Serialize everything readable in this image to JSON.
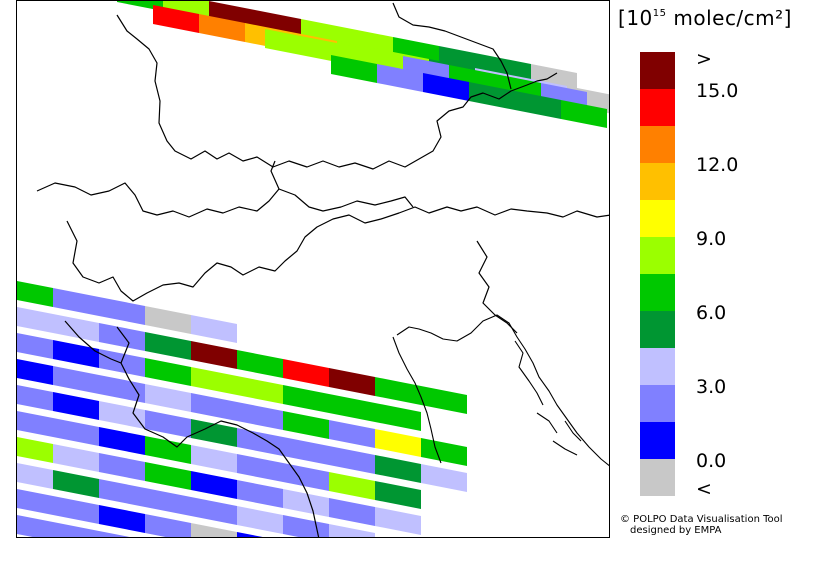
{
  "legend": {
    "title_base": "10",
    "title_exp": "15",
    "title_unit": "molec/cm²",
    "colors": [
      "#800000",
      "#ff0000",
      "#ff8000",
      "#ffc000",
      "#ffff00",
      "#9bff00",
      "#00c800",
      "#009632",
      "#c0c0ff",
      "#8080ff",
      "#0000ff",
      "#c8c8c8"
    ],
    "ticks": [
      ">",
      "15.0",
      "12.0",
      "9.0",
      "6.0",
      "3.0",
      "0.0",
      "<"
    ]
  },
  "credit": {
    "line1": "© POLPO Data Visualisation Tool",
    "line2": "designed by EMPA"
  }
}
